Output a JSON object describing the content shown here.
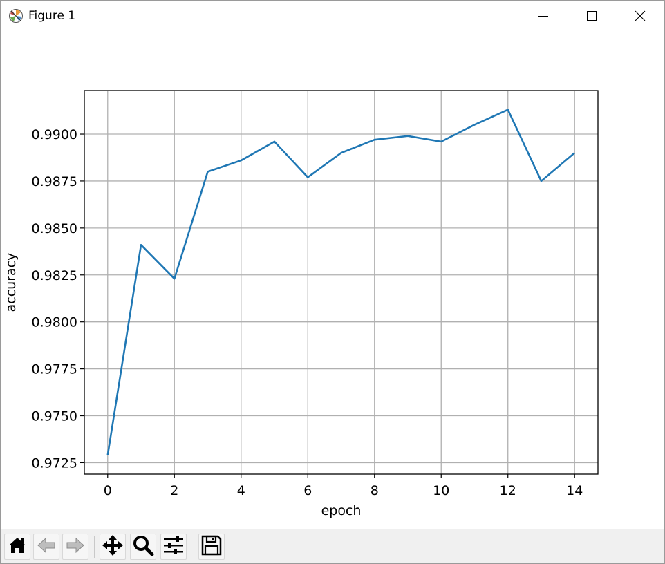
{
  "window": {
    "title": "Figure 1",
    "icons": {
      "app": "matplotlib-icon",
      "minimize": "minimize-icon",
      "maximize": "maximize-icon",
      "close": "close-icon"
    }
  },
  "toolbar": {
    "buttons": [
      {
        "name": "home-button",
        "icon": "home-icon"
      },
      {
        "name": "back-button",
        "icon": "arrow-left-icon"
      },
      {
        "name": "forward-button",
        "icon": "arrow-right-icon"
      },
      {
        "name": "pan-button",
        "icon": "move-icon"
      },
      {
        "name": "zoom-button",
        "icon": "magnifier-icon"
      },
      {
        "name": "configure-subplots-button",
        "icon": "sliders-icon"
      },
      {
        "name": "save-button",
        "icon": "floppy-disk-icon"
      }
    ]
  },
  "chart_data": {
    "type": "line",
    "title": "",
    "xlabel": "epoch",
    "ylabel": "accuracy",
    "x": [
      0,
      1,
      2,
      3,
      4,
      5,
      6,
      7,
      8,
      9,
      10,
      11,
      12,
      13,
      14
    ],
    "series": [
      {
        "values": [
          0.9729,
          0.9841,
          0.9823,
          0.988,
          0.9886,
          0.9896,
          0.9877,
          0.989,
          0.9897,
          0.9899,
          0.9896,
          0.9905,
          0.9913,
          0.9875,
          0.989
        ],
        "color": "#1f77b4"
      }
    ],
    "xlim": [
      -0.7,
      14.7
    ],
    "ylim": [
      0.97189,
      0.99232
    ],
    "xticks": [
      0,
      2,
      4,
      6,
      8,
      10,
      12,
      14
    ],
    "xtick_labels": [
      "0",
      "2",
      "4",
      "6",
      "8",
      "10",
      "12",
      "14"
    ],
    "yticks": [
      0.9725,
      0.975,
      0.9775,
      0.98,
      0.9825,
      0.985,
      0.9875,
      0.99
    ],
    "ytick_labels": [
      "0.9725",
      "0.9750",
      "0.9775",
      "0.9800",
      "0.9825",
      "0.9850",
      "0.9875",
      "0.9900"
    ],
    "grid": true,
    "legend": "none"
  }
}
